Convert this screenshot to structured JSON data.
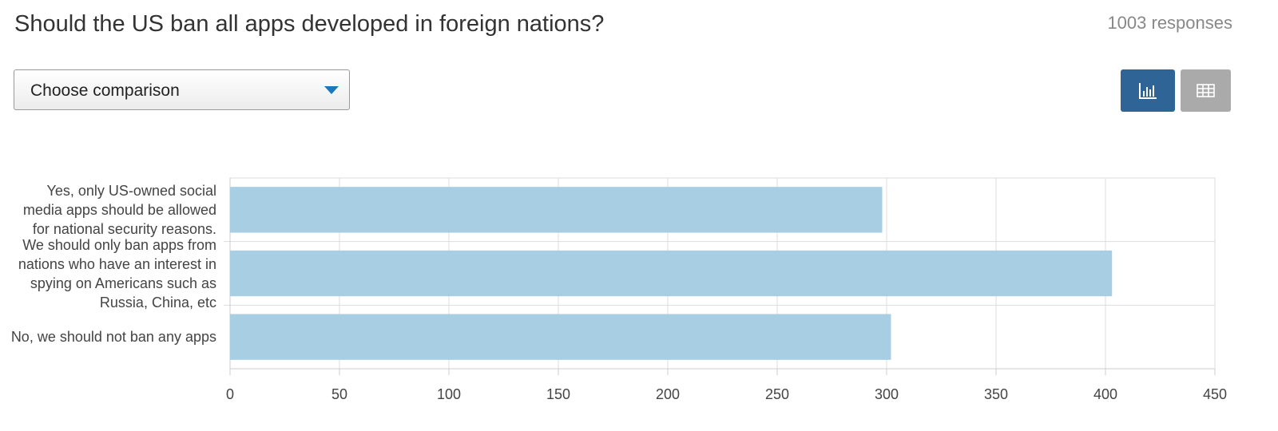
{
  "title": "Should the US ban all apps developed in foreign nations?",
  "responses": "1003 responses",
  "dropdown": "Choose comparison",
  "chart_data": {
    "type": "bar",
    "orientation": "horizontal",
    "categories": [
      "Yes, only US-owned social media apps should be allowed for national security reasons.",
      "We should only ban apps from nations who have an interest in spying on Americans such as Russia, China, etc",
      "No, we should not ban any apps"
    ],
    "values": [
      298,
      403,
      302
    ],
    "color": "#a8cee3",
    "xlim": [
      0,
      450
    ],
    "xticks": [
      0,
      50,
      100,
      150,
      200,
      250,
      300,
      350,
      400,
      450
    ],
    "grid": true
  }
}
